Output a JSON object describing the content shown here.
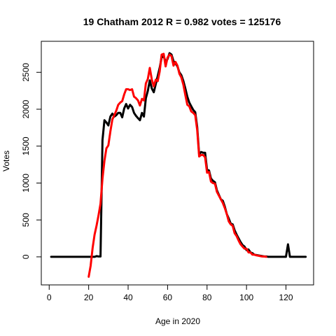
{
  "chart_data": {
    "type": "line",
    "title": "19 Chatham 2012 R = 0.982 votes = 125176",
    "xlabel": "Age in 2020",
    "ylabel": "Votes",
    "xlim": [
      -4,
      134
    ],
    "ylim": [
      -380,
      2920
    ],
    "xticks": [
      0,
      20,
      40,
      60,
      80,
      100,
      120
    ],
    "yticks": [
      0,
      500,
      1000,
      1500,
      2000,
      2500
    ],
    "grid": false,
    "legend": "none",
    "series": [
      {
        "color": "#000000",
        "points": [
          [
            1,
            0
          ],
          [
            23,
            0
          ],
          [
            24,
            10
          ],
          [
            25,
            5
          ],
          [
            26,
            5
          ],
          [
            27,
            1580
          ],
          [
            28,
            1850
          ],
          [
            29,
            1820
          ],
          [
            30,
            1780
          ],
          [
            31,
            1900
          ],
          [
            32,
            1940
          ],
          [
            33,
            1900
          ],
          [
            34,
            1920
          ],
          [
            35,
            1950
          ],
          [
            36,
            1950
          ],
          [
            37,
            1890
          ],
          [
            38,
            2010
          ],
          [
            39,
            2070
          ],
          [
            40,
            2010
          ],
          [
            41,
            2060
          ],
          [
            42,
            2030
          ],
          [
            43,
            1950
          ],
          [
            44,
            1910
          ],
          [
            45,
            1880
          ],
          [
            46,
            1850
          ],
          [
            47,
            1950
          ],
          [
            48,
            1900
          ],
          [
            49,
            2150
          ],
          [
            50,
            2250
          ],
          [
            51,
            2390
          ],
          [
            52,
            2280
          ],
          [
            53,
            2230
          ],
          [
            54,
            2340
          ],
          [
            55,
            2450
          ],
          [
            56,
            2560
          ],
          [
            57,
            2700
          ],
          [
            58,
            2720
          ],
          [
            59,
            2640
          ],
          [
            60,
            2680
          ],
          [
            61,
            2760
          ],
          [
            62,
            2740
          ],
          [
            63,
            2650
          ],
          [
            64,
            2620
          ],
          [
            65,
            2580
          ],
          [
            66,
            2500
          ],
          [
            67,
            2460
          ],
          [
            68,
            2380
          ],
          [
            69,
            2280
          ],
          [
            70,
            2170
          ],
          [
            71,
            2090
          ],
          [
            72,
            2040
          ],
          [
            73,
            1990
          ],
          [
            74,
            1960
          ],
          [
            75,
            1760
          ],
          [
            76,
            1390
          ],
          [
            77,
            1420
          ],
          [
            78,
            1410
          ],
          [
            79,
            1410
          ],
          [
            80,
            1180
          ],
          [
            81,
            1170
          ],
          [
            82,
            1060
          ],
          [
            83,
            1030
          ],
          [
            84,
            1010
          ],
          [
            85,
            900
          ],
          [
            86,
            840
          ],
          [
            87,
            780
          ],
          [
            88,
            760
          ],
          [
            89,
            680
          ],
          [
            90,
            580
          ],
          [
            91,
            520
          ],
          [
            92,
            450
          ],
          [
            93,
            440
          ],
          [
            94,
            360
          ],
          [
            95,
            300
          ],
          [
            96,
            250
          ],
          [
            97,
            200
          ],
          [
            98,
            160
          ],
          [
            99,
            140
          ],
          [
            100,
            90
          ],
          [
            101,
            100
          ],
          [
            102,
            60
          ],
          [
            103,
            50
          ],
          [
            104,
            30
          ],
          [
            105,
            25
          ],
          [
            106,
            20
          ],
          [
            107,
            15
          ],
          [
            108,
            10
          ],
          [
            109,
            5
          ],
          [
            110,
            5
          ],
          [
            111,
            0
          ],
          [
            120,
            0
          ],
          [
            121,
            170
          ],
          [
            122,
            0
          ],
          [
            130,
            0
          ]
        ]
      },
      {
        "color": "#ff0000",
        "points": [
          [
            20,
            -270
          ],
          [
            21,
            -120
          ],
          [
            22,
            120
          ],
          [
            23,
            300
          ],
          [
            24,
            420
          ],
          [
            25,
            560
          ],
          [
            26,
            720
          ],
          [
            27,
            1060
          ],
          [
            28,
            1300
          ],
          [
            29,
            1470
          ],
          [
            30,
            1510
          ],
          [
            31,
            1700
          ],
          [
            32,
            1860
          ],
          [
            33,
            1920
          ],
          [
            34,
            1980
          ],
          [
            35,
            2060
          ],
          [
            36,
            2090
          ],
          [
            37,
            2110
          ],
          [
            38,
            2200
          ],
          [
            39,
            2270
          ],
          [
            40,
            2270
          ],
          [
            41,
            2260
          ],
          [
            42,
            2270
          ],
          [
            43,
            2170
          ],
          [
            44,
            2150
          ],
          [
            45,
            2120
          ],
          [
            46,
            2050
          ],
          [
            47,
            2140
          ],
          [
            48,
            2120
          ],
          [
            49,
            2350
          ],
          [
            50,
            2410
          ],
          [
            51,
            2560
          ],
          [
            52,
            2400
          ],
          [
            53,
            2310
          ],
          [
            54,
            2400
          ],
          [
            55,
            2380
          ],
          [
            56,
            2510
          ],
          [
            57,
            2740
          ],
          [
            58,
            2750
          ],
          [
            59,
            2580
          ],
          [
            60,
            2700
          ],
          [
            61,
            2740
          ],
          [
            62,
            2720
          ],
          [
            63,
            2590
          ],
          [
            64,
            2640
          ],
          [
            65,
            2590
          ],
          [
            66,
            2480
          ],
          [
            67,
            2430
          ],
          [
            68,
            2330
          ],
          [
            69,
            2190
          ],
          [
            70,
            2060
          ],
          [
            71,
            2040
          ],
          [
            72,
            1970
          ],
          [
            73,
            1950
          ],
          [
            74,
            1920
          ],
          [
            75,
            1720
          ],
          [
            76,
            1360
          ],
          [
            77,
            1380
          ],
          [
            78,
            1380
          ],
          [
            79,
            1350
          ],
          [
            80,
            1140
          ],
          [
            81,
            1150
          ],
          [
            82,
            1020
          ],
          [
            83,
            1000
          ],
          [
            84,
            990
          ],
          [
            85,
            880
          ],
          [
            86,
            830
          ],
          [
            87,
            780
          ],
          [
            88,
            730
          ],
          [
            89,
            660
          ],
          [
            90,
            580
          ],
          [
            91,
            480
          ],
          [
            92,
            440
          ],
          [
            93,
            420
          ],
          [
            94,
            320
          ],
          [
            95,
            280
          ],
          [
            96,
            220
          ],
          [
            97,
            170
          ],
          [
            98,
            140
          ],
          [
            99,
            110
          ],
          [
            100,
            110
          ],
          [
            101,
            60
          ],
          [
            102,
            60
          ],
          [
            103,
            30
          ],
          [
            104,
            30
          ],
          [
            105,
            20
          ],
          [
            106,
            15
          ],
          [
            107,
            10
          ],
          [
            108,
            5
          ],
          [
            109,
            5
          ],
          [
            110,
            0
          ]
        ]
      }
    ]
  }
}
